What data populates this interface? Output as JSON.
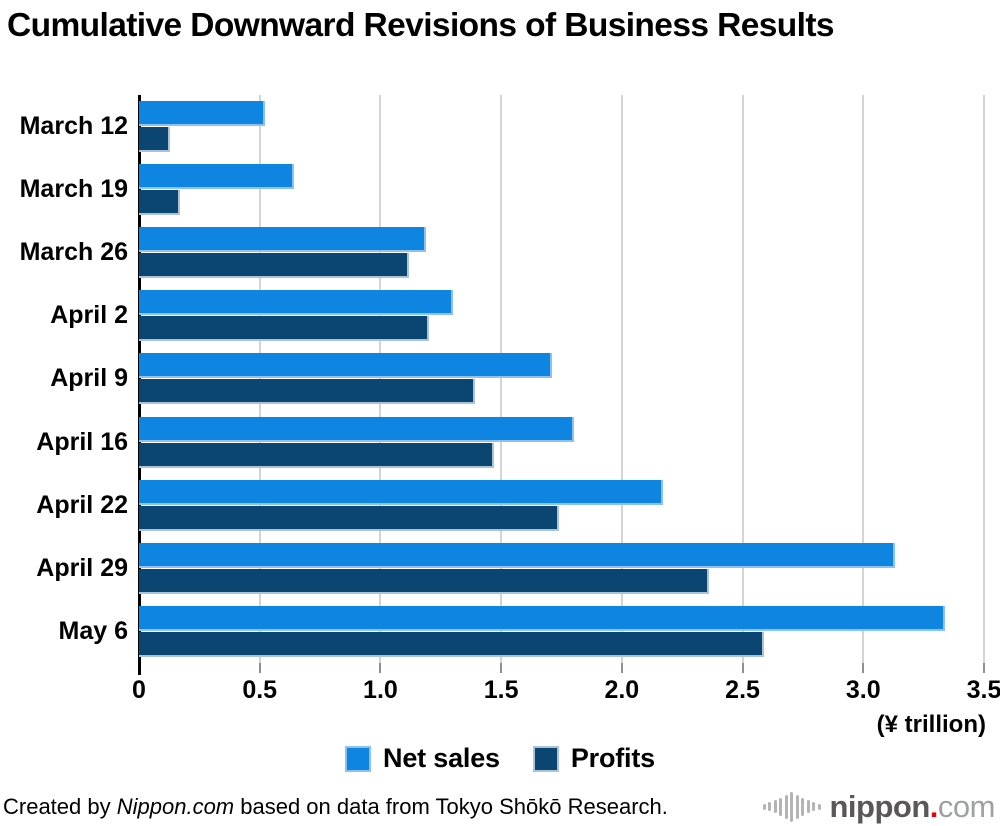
{
  "chart_data": {
    "type": "bar",
    "orientation": "horizontal",
    "title": "Cumulative Downward Revisions of Business Results",
    "categories": [
      "March 12",
      "March 19",
      "March 26",
      "April 2",
      "April 9",
      "April 16",
      "April 22",
      "April 29",
      "May 6"
    ],
    "series": [
      {
        "name": "Net sales",
        "color": "#0d85e1",
        "border_color": "#8ec1ef",
        "values": [
          0.52,
          0.64,
          1.19,
          1.3,
          1.71,
          1.8,
          2.17,
          3.13,
          3.34
        ]
      },
      {
        "name": "Profits",
        "color": "#0b4571",
        "border_color": "#aac3d8",
        "values": [
          0.13,
          0.17,
          1.12,
          1.2,
          1.39,
          1.47,
          1.74,
          2.36,
          2.59
        ]
      }
    ],
    "xlim": [
      0,
      3.5
    ],
    "xtick_step": 0.5,
    "xticks": [
      "0",
      "0.5",
      "1.0",
      "1.5",
      "2.0",
      "2.5",
      "3.0",
      "3.5"
    ],
    "x_unit_label": "(¥ trillion)",
    "grid": true,
    "gridline_color": "#d4d4d4",
    "legend_position": "bottom"
  },
  "legend": {
    "items": [
      {
        "label": "Net sales",
        "color": "#0d85e1"
      },
      {
        "label": "Profits",
        "color": "#0b4571"
      }
    ]
  },
  "footer": {
    "credit_prefix": "Created by ",
    "credit_source": "Nippon.com",
    "credit_suffix": " based on data from Tokyo Shōkō Research.",
    "logo": {
      "icon": "soundwave-icon",
      "word": "nippon",
      "dot": ".",
      "tld": "com",
      "word_color": "#595757",
      "dot_color": "#e60012",
      "tld_color": "#9fa0a0"
    }
  }
}
